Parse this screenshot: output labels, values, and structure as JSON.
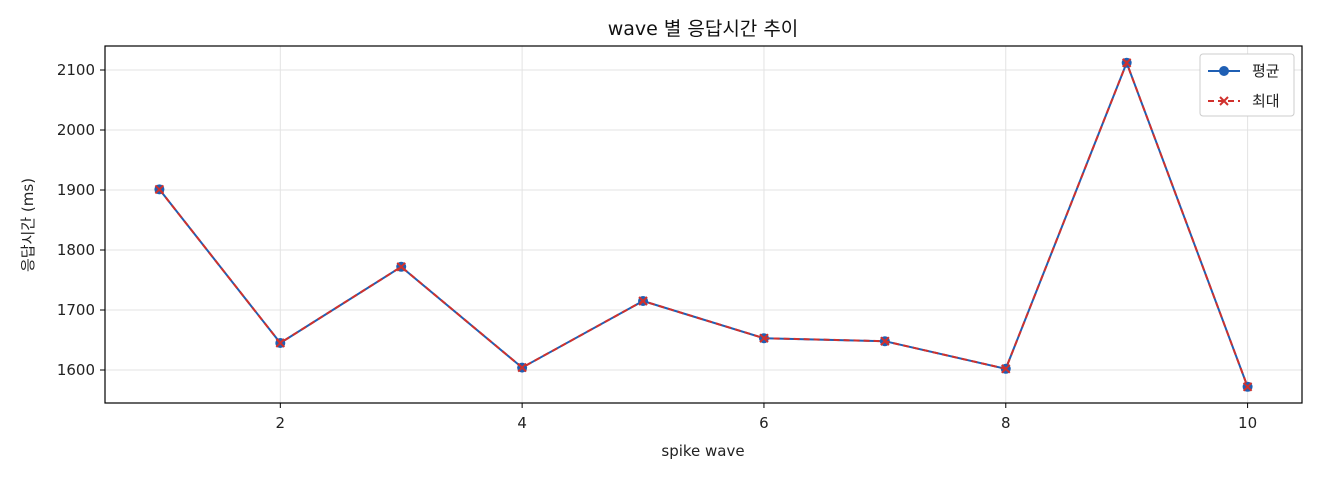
{
  "chart_data": {
    "type": "line",
    "title": "wave 별 응답시간 추이",
    "xlabel": "spike wave",
    "ylabel": "응답시간 (ms)",
    "xlim": [
      0.55,
      10.45
    ],
    "ylim": [
      1545,
      2140
    ],
    "xticks": [
      2,
      4,
      6,
      8,
      10
    ],
    "yticks": [
      1600,
      1700,
      1800,
      1900,
      2000,
      2100
    ],
    "grid": true,
    "legend_position": "top-right",
    "x": [
      1,
      2,
      3,
      4,
      5,
      6,
      7,
      8,
      9,
      10
    ],
    "series": [
      {
        "name": "평균",
        "values": [
          1901,
          1645,
          1772,
          1604,
          1715,
          1653,
          1648,
          1602,
          2112,
          1572
        ],
        "color": "#1f5fb4",
        "marker": "circle",
        "line_style": "solid"
      },
      {
        "name": "최대",
        "values": [
          1901,
          1645,
          1772,
          1604,
          1715,
          1653,
          1648,
          1602,
          2112,
          1572
        ],
        "color": "#d0312d",
        "marker": "x",
        "line_style": "dashed"
      }
    ]
  }
}
